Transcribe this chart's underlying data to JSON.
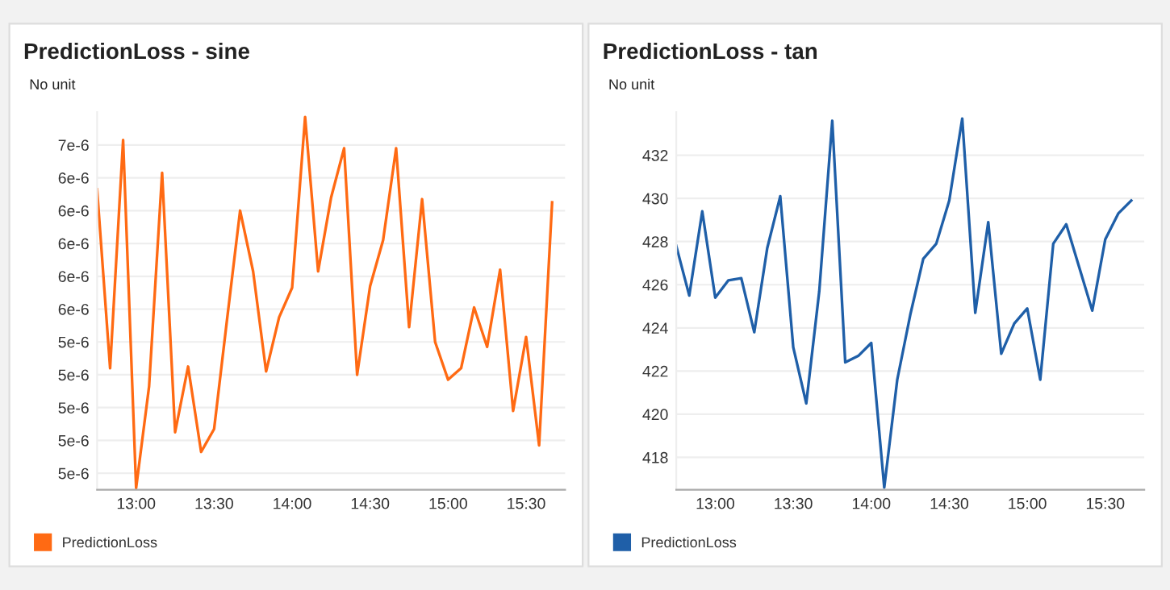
{
  "chart_data": [
    {
      "type": "line",
      "title": "PredictionLoss - sine",
      "ylabel": "No unit",
      "x": [
        12.75,
        12.8333,
        12.9167,
        13.0,
        13.0833,
        13.1667,
        13.25,
        13.3333,
        13.4167,
        13.5,
        13.5833,
        13.6667,
        13.75,
        13.8333,
        13.9167,
        14.0,
        14.0833,
        14.1667,
        14.25,
        14.3333,
        14.4167,
        14.5,
        14.5833,
        14.6667,
        14.75,
        14.8333,
        14.9167,
        15.0,
        15.0833,
        15.1667,
        15.25,
        15.3333,
        15.4167,
        15.5,
        15.5833,
        15.6667
      ],
      "series": [
        {
          "name": "PredictionLoss",
          "color": "#ff6a13",
          "values": [
            6.33e-06,
            5.24e-06,
            6.63e-06,
            4.51e-06,
            5.13e-06,
            6.43e-06,
            4.85e-06,
            5.25e-06,
            4.73e-06,
            4.87e-06,
            5.54e-06,
            6.2e-06,
            5.83e-06,
            5.22e-06,
            5.55e-06,
            5.73e-06,
            6.77e-06,
            5.83e-06,
            6.28e-06,
            6.58e-06,
            5.2e-06,
            5.74e-06,
            6.02e-06,
            6.58e-06,
            5.49e-06,
            6.27e-06,
            5.4e-06,
            5.17e-06,
            5.24e-06,
            5.61e-06,
            5.37e-06,
            5.84e-06,
            4.98e-06,
            5.43e-06,
            4.77e-06,
            6.25e-06
          ]
        }
      ],
      "xlim": [
        12.75,
        15.75
      ],
      "ylim": [
        4.5e-06,
        6.8e-06
      ],
      "xticks": [
        {
          "value": 13.0,
          "label": "13:00"
        },
        {
          "value": 13.5,
          "label": "13:30"
        },
        {
          "value": 14.0,
          "label": "14:00"
        },
        {
          "value": 14.5,
          "label": "14:30"
        },
        {
          "value": 15.0,
          "label": "15:00"
        },
        {
          "value": 15.5,
          "label": "15:30"
        }
      ],
      "yticks": [
        {
          "value": 4.6e-06,
          "label": "5e-6"
        },
        {
          "value": 4.8e-06,
          "label": "5e-6"
        },
        {
          "value": 5e-06,
          "label": "5e-6"
        },
        {
          "value": 5.2e-06,
          "label": "5e-6"
        },
        {
          "value": 5.4e-06,
          "label": "5e-6"
        },
        {
          "value": 5.6e-06,
          "label": "6e-6"
        },
        {
          "value": 5.8e-06,
          "label": "6e-6"
        },
        {
          "value": 6e-06,
          "label": "6e-6"
        },
        {
          "value": 6.2e-06,
          "label": "6e-6"
        },
        {
          "value": 6.4e-06,
          "label": "6e-6"
        },
        {
          "value": 6.6e-06,
          "label": "7e-6"
        }
      ],
      "grid": "y",
      "legend": "bottom left",
      "marker": "none",
      "line_style": "solid"
    },
    {
      "type": "line",
      "title": "PredictionLoss - tan",
      "ylabel": "No unit",
      "x": [
        12.75,
        12.8333,
        12.9167,
        13.0,
        13.0833,
        13.1667,
        13.25,
        13.3333,
        13.4167,
        13.5,
        13.5833,
        13.6667,
        13.75,
        13.8333,
        13.9167,
        14.0,
        14.0833,
        14.1667,
        14.25,
        14.3333,
        14.4167,
        14.5,
        14.5833,
        14.6667,
        14.75,
        14.8333,
        14.9167,
        15.0,
        15.0833,
        15.1667,
        15.25,
        15.3333,
        15.4167,
        15.5,
        15.5833,
        15.6667
      ],
      "series": [
        {
          "name": "PredictionLoss",
          "color": "#1f5fa8",
          "values": [
            427.8,
            425.5,
            429.4,
            425.4,
            426.2,
            426.3,
            423.8,
            427.7,
            430.1,
            423.1,
            420.5,
            425.7,
            433.6,
            422.4,
            422.7,
            423.3,
            416.6,
            421.6,
            424.6,
            427.2,
            427.9,
            429.9,
            433.7,
            424.7,
            428.9,
            422.8,
            424.2,
            424.9,
            421.6,
            427.9,
            428.8,
            426.8,
            424.8,
            428.1,
            429.3,
            429.9
          ]
        }
      ],
      "xlim": [
        12.75,
        15.75
      ],
      "ylim": [
        416.5,
        434
      ],
      "xticks": [
        {
          "value": 13.0,
          "label": "13:00"
        },
        {
          "value": 13.5,
          "label": "13:30"
        },
        {
          "value": 14.0,
          "label": "14:00"
        },
        {
          "value": 14.5,
          "label": "14:30"
        },
        {
          "value": 15.0,
          "label": "15:00"
        },
        {
          "value": 15.5,
          "label": "15:30"
        }
      ],
      "yticks": [
        418,
        420,
        422,
        424,
        426,
        428,
        430,
        432
      ],
      "grid": "y",
      "legend": "bottom left",
      "marker": "none",
      "line_style": "solid"
    }
  ]
}
